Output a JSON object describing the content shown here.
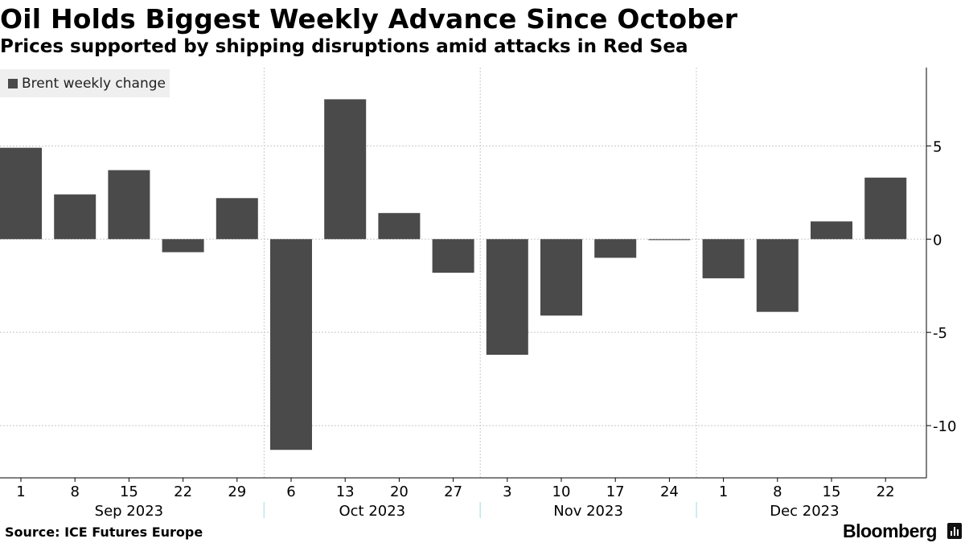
{
  "title": "Oil Holds Biggest Weekly Advance Since October",
  "subtitle": "Prices supported by shipping disruptions amid attacks in Red Sea",
  "source": "Source: ICE Futures Europe",
  "brand": "Bloomberg",
  "colors": {
    "bar": "#4a4a4a",
    "grid": "#c8c8c8",
    "legend_bg": "#efefef"
  },
  "chart_data": {
    "type": "bar",
    "series": [
      {
        "name": "Brent weekly change",
        "values": [
          4.9,
          2.4,
          3.7,
          -0.7,
          2.2,
          -11.3,
          7.5,
          1.4,
          -1.8,
          -6.2,
          -4.1,
          -1.0,
          -0.05,
          -2.1,
          -3.9,
          0.95,
          3.3
        ]
      }
    ],
    "categories": [
      "1",
      "8",
      "15",
      "22",
      "29",
      "6",
      "13",
      "20",
      "27",
      "3",
      "10",
      "17",
      "24",
      "1",
      "8",
      "15",
      "22"
    ],
    "month_groups": [
      {
        "label": "Sep 2023",
        "start": 0,
        "end": 4
      },
      {
        "label": "Oct 2023",
        "start": 5,
        "end": 8
      },
      {
        "label": "Nov 2023",
        "start": 9,
        "end": 12
      },
      {
        "label": "Dec 2023",
        "start": 13,
        "end": 16
      }
    ],
    "yticks": [
      5,
      0,
      -5,
      -10
    ],
    "ylim": [
      -12.8,
      9.2
    ],
    "grid": true,
    "legend_position": "top-left",
    "ytick_side": "right",
    "title": "Oil Holds Biggest Weekly Advance Since October",
    "xlabel": "",
    "ylabel": ""
  }
}
